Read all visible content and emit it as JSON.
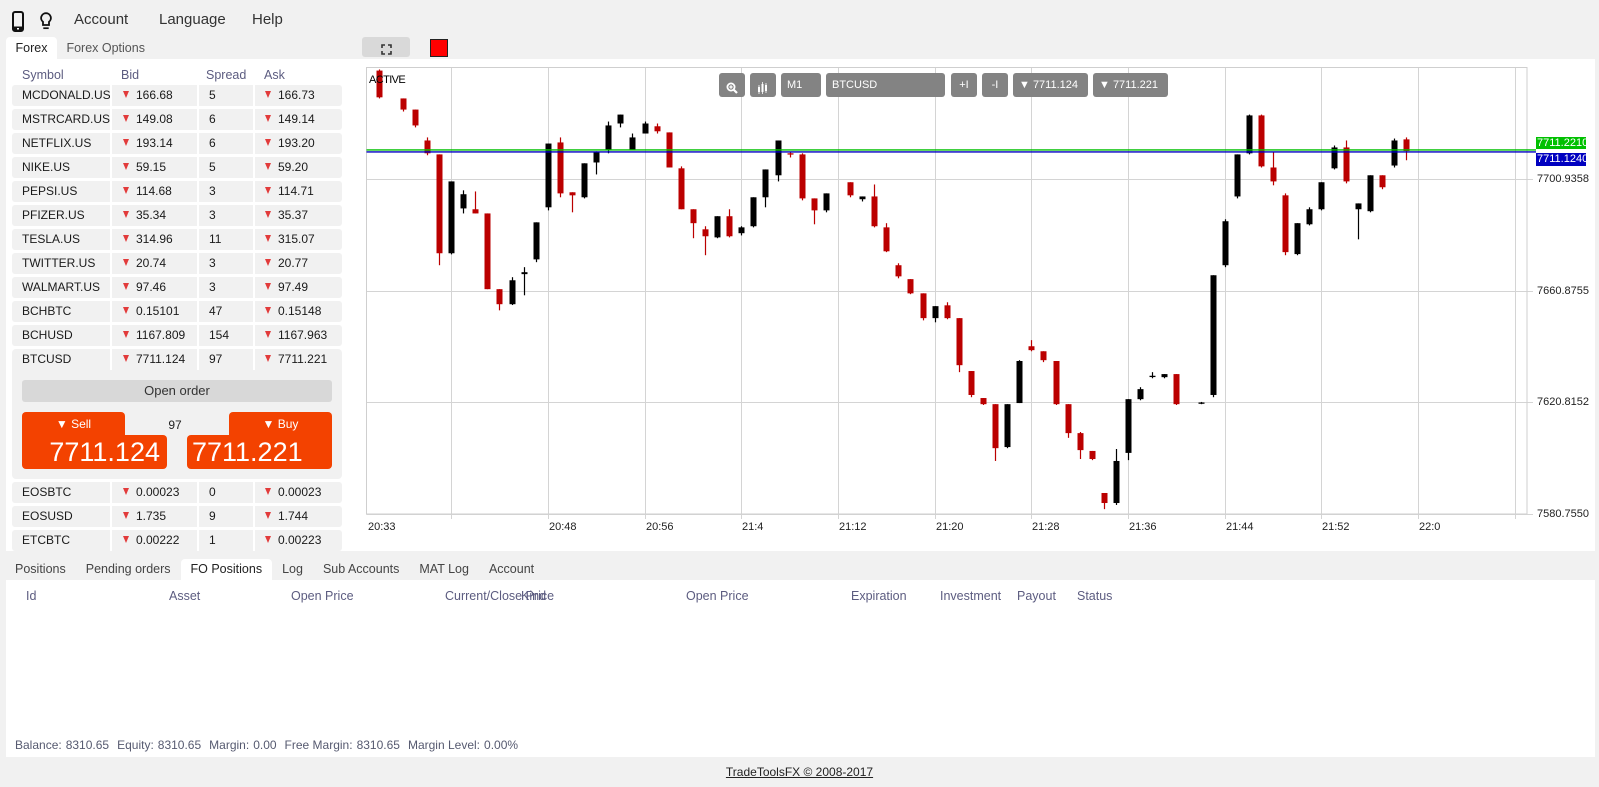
{
  "nav": {
    "icons": {
      "device": "phone-icon",
      "tips": "lightbulb-icon"
    },
    "items": [
      {
        "label": "Account"
      },
      {
        "label": "Language"
      },
      {
        "label": "Help"
      }
    ]
  },
  "watchlist": {
    "tabs": [
      {
        "label": "Forex",
        "active": true
      },
      {
        "label": "Forex Options",
        "active": false
      }
    ],
    "columns": {
      "symbol": "Symbol",
      "bid": "Bid",
      "spread": "Spread",
      "ask": "Ask"
    },
    "rows": [
      {
        "symbol": "MCDONALD.US",
        "bid": "166.68",
        "spread": "5",
        "ask": "166.73",
        "bid_trend": "down",
        "ask_trend": "down"
      },
      {
        "symbol": "MSTRCARD.US",
        "bid": "149.08",
        "spread": "6",
        "ask": "149.14",
        "bid_trend": "down",
        "ask_trend": "down"
      },
      {
        "symbol": "NETFLIX.US",
        "bid": "193.14",
        "spread": "6",
        "ask": "193.20",
        "bid_trend": "down",
        "ask_trend": "down"
      },
      {
        "symbol": "NIKE.US",
        "bid": "59.15",
        "spread": "5",
        "ask": "59.20",
        "bid_trend": "down",
        "ask_trend": "down"
      },
      {
        "symbol": "PEPSI.US",
        "bid": "114.68",
        "spread": "3",
        "ask": "114.71",
        "bid_trend": "down",
        "ask_trend": "down"
      },
      {
        "symbol": "PFIZER.US",
        "bid": "35.34",
        "spread": "3",
        "ask": "35.37",
        "bid_trend": "down",
        "ask_trend": "down"
      },
      {
        "symbol": "TESLA.US",
        "bid": "314.96",
        "spread": "11",
        "ask": "315.07",
        "bid_trend": "down",
        "ask_trend": "down"
      },
      {
        "symbol": "TWITTER.US",
        "bid": "20.74",
        "spread": "3",
        "ask": "20.77",
        "bid_trend": "down",
        "ask_trend": "down"
      },
      {
        "symbol": "WALMART.US",
        "bid": "97.46",
        "spread": "3",
        "ask": "97.49",
        "bid_trend": "down",
        "ask_trend": "down"
      },
      {
        "symbol": "BCHBTC",
        "bid": "0.15101",
        "spread": "47",
        "ask": "0.15148",
        "bid_trend": "down",
        "ask_trend": "down"
      },
      {
        "symbol": "BCHUSD",
        "bid": "1167.809",
        "spread": "154",
        "ask": "1167.963",
        "bid_trend": "down",
        "ask_trend": "down"
      }
    ],
    "selected": {
      "symbol": "BTCUSD",
      "bid": "7711.124",
      "spread": "97",
      "ask": "7711.221",
      "bid_trend": "down",
      "ask_trend": "down"
    },
    "rows_after": [
      {
        "symbol": "EOSBTC",
        "bid": "0.00023",
        "spread": "0",
        "ask": "0.00023",
        "bid_trend": "down",
        "ask_trend": "down"
      },
      {
        "symbol": "EOSUSD",
        "bid": "1.735",
        "spread": "9",
        "ask": "1.744",
        "bid_trend": "down",
        "ask_trend": "down"
      },
      {
        "symbol": "ETCBTC",
        "bid": "0.00222",
        "spread": "1",
        "ask": "0.00223",
        "bid_trend": "down",
        "ask_trend": "down"
      }
    ]
  },
  "order_ticket": {
    "open_order_label": "Open order",
    "sell_label": "▼ Sell",
    "buy_label": "▼ Buy",
    "sell_price": "7711.124",
    "buy_price": "7711.221",
    "spread": "97",
    "accent_color": "#f34200"
  },
  "chart_toolbar": {
    "fullscreen_icon": "fullscreen-icon",
    "color_swatch": "#ff0000",
    "zoom_icon": "zoom-in-icon",
    "chart_type_icon": "candlestick-icon",
    "timeframe": "M1",
    "symbol": "BTCUSD",
    "increase_label": "+I",
    "decrease_label": "-I",
    "bid_button": "▼ 7711.124",
    "ask_button": "▼ 7711.221"
  },
  "chart_data": {
    "type": "candlestick",
    "title": "BTCUSD M1",
    "status_label": "ACTIVE",
    "xlabel": "",
    "ylabel": "",
    "xlim": [
      "20:33",
      "22:09"
    ],
    "ylim": [
      7580.755,
      7741.11
    ],
    "grid": true,
    "y_ticks": [
      {
        "value": 7700.9358,
        "label": "7700.9358"
      },
      {
        "value": 7660.8755,
        "label": "7660.8755"
      },
      {
        "value": 7620.8152,
        "label": "7620.8152"
      },
      {
        "value": 7580.755,
        "label": "7580.7550"
      }
    ],
    "x_ticks": [
      {
        "time": "20:33",
        "label": "20:33"
      },
      {
        "time": "20:48",
        "label": "20:48"
      },
      {
        "time": "20:56",
        "label": "20:56"
      },
      {
        "time": "21:04",
        "label": "21:4"
      },
      {
        "time": "21:12",
        "label": "21:12"
      },
      {
        "time": "21:20",
        "label": "21:20"
      },
      {
        "time": "21:28",
        "label": "21:28"
      },
      {
        "time": "21:36",
        "label": "21:36"
      },
      {
        "time": "21:44",
        "label": "21:44"
      },
      {
        "time": "21:52",
        "label": "21:52"
      },
      {
        "time": "22:00",
        "label": "22:0"
      }
    ],
    "x_gridlines": [
      "20:40",
      "20:48",
      "20:56",
      "21:04",
      "21:12",
      "21:20",
      "21:28",
      "21:36",
      "21:44",
      "21:52",
      "22:00",
      "22:08"
    ],
    "price_lines": [
      {
        "name": "ask",
        "value": 7711.221,
        "label": "7711.2210",
        "color": "#00c000"
      },
      {
        "name": "bid",
        "value": 7711.124,
        "label": "7711.1240",
        "color": "#0000c0"
      }
    ],
    "colors": {
      "up": "#000000",
      "down": "#bb0000",
      "grid": "#d4d4d4"
    },
    "candles_format": [
      "time",
      "open",
      "high",
      "low",
      "close"
    ],
    "candles": [
      [
        "20:34",
        7740.0,
        7740.4,
        7730.0,
        7730.4
      ],
      [
        "20:36",
        7730.0,
        7730.0,
        7725.3,
        7726.0
      ],
      [
        "20:37",
        7726.0,
        7726.0,
        7719.6,
        7720.3
      ],
      [
        "20:38",
        7714.9,
        7716.0,
        7709.6,
        7710.3
      ],
      [
        "20:39",
        7709.9,
        7709.9,
        7670.1,
        7674.4
      ],
      [
        "20:40",
        7674.4,
        7700.2,
        7674.0,
        7700.2
      ],
      [
        "20:41",
        7690.5,
        7697.0,
        7688.7,
        7695.6
      ],
      [
        "20:42",
        7690.2,
        7696.6,
        7688.7,
        7688.7
      ],
      [
        "20:43",
        7688.7,
        7688.7,
        7661.5,
        7661.5
      ],
      [
        "20:44",
        7661.5,
        7661.5,
        7653.9,
        7656.1
      ],
      [
        "20:45",
        7656.1,
        7665.8,
        7655.8,
        7664.7
      ],
      [
        "20:46",
        7666.9,
        7669.4,
        7659.3,
        7667.6
      ],
      [
        "20:47",
        7672.2,
        7685.5,
        7671.2,
        7685.5
      ],
      [
        "20:48",
        7690.9,
        7713.8,
        7689.8,
        7713.8
      ],
      [
        "20:49",
        7714.2,
        7716.0,
        7694.5,
        7695.9
      ],
      [
        "20:50",
        7696.3,
        7696.3,
        7689.1,
        7695.2
      ],
      [
        "20:51",
        7694.5,
        7706.7,
        7694.1,
        7706.7
      ],
      [
        "20:52",
        7707.0,
        7711.0,
        7702.7,
        7710.6
      ],
      [
        "20:53",
        7711.3,
        7721.7,
        7710.3,
        7720.3
      ],
      [
        "20:54",
        7721.0,
        7724.2,
        7719.6,
        7724.2
      ],
      [
        "20:55",
        7711.3,
        7717.4,
        7711.3,
        7716.0
      ],
      [
        "20:56",
        7717.4,
        7721.7,
        7717.4,
        7721.0
      ],
      [
        "20:57",
        7720.0,
        7721.0,
        7717.4,
        7718.2
      ],
      [
        "20:58",
        7717.8,
        7717.8,
        7705.2,
        7705.2
      ],
      [
        "20:59",
        7704.9,
        7705.6,
        7690.2,
        7690.2
      ],
      [
        "21:00",
        7690.2,
        7690.2,
        7679.8,
        7685.2
      ],
      [
        "21:01",
        7683.0,
        7684.1,
        7673.7,
        7680.5
      ],
      [
        "21:02",
        7680.1,
        7687.7,
        7679.8,
        7687.7
      ],
      [
        "21:03",
        7687.7,
        7690.2,
        7680.1,
        7680.5
      ],
      [
        "21:04",
        7681.6,
        7684.1,
        7680.8,
        7683.7
      ],
      [
        "21:05",
        7684.1,
        7694.5,
        7683.7,
        7694.5
      ],
      [
        "21:06",
        7694.5,
        7704.5,
        7690.9,
        7704.5
      ],
      [
        "21:07",
        7702.4,
        7714.9,
        7700.2,
        7714.9
      ],
      [
        "21:08",
        7710.3,
        7710.6,
        7708.8,
        7709.9
      ],
      [
        "21:09",
        7709.9,
        7710.3,
        7693.4,
        7694.1
      ],
      [
        "21:10",
        7694.1,
        7694.1,
        7684.8,
        7689.8
      ],
      [
        "21:11",
        7689.8,
        7695.9,
        7689.1,
        7695.9
      ],
      [
        "21:13",
        7699.9,
        7699.9,
        7694.5,
        7695.2
      ],
      [
        "21:14",
        7693.8,
        7694.8,
        7693.0,
        7694.8
      ],
      [
        "21:15",
        7694.8,
        7699.1,
        7683.7,
        7684.1
      ],
      [
        "21:16",
        7683.7,
        7685.2,
        7674.8,
        7675.1
      ],
      [
        "21:17",
        7670.1,
        7670.8,
        7665.4,
        7666.1
      ],
      [
        "21:18",
        7665.1,
        7665.1,
        7659.7,
        7660.0
      ],
      [
        "21:19",
        7660.0,
        7660.0,
        7650.3,
        7651.1
      ],
      [
        "21:20",
        7651.1,
        7655.4,
        7649.6,
        7655.4
      ],
      [
        "21:21",
        7655.7,
        7656.8,
        7650.7,
        7651.1
      ],
      [
        "21:22",
        7651.1,
        7651.1,
        7631.7,
        7634.2
      ],
      [
        "21:23",
        7632.1,
        7632.1,
        7622.7,
        7623.5
      ],
      [
        "21:24",
        7622.4,
        7622.4,
        7619.9,
        7620.2
      ],
      [
        "21:25",
        7620.2,
        7620.2,
        7599.8,
        7604.4
      ],
      [
        "21:26",
        7604.8,
        7620.2,
        7604.4,
        7620.2
      ],
      [
        "21:27",
        7620.6,
        7636.0,
        7620.6,
        7635.7
      ],
      [
        "21:28",
        7641.0,
        7643.2,
        7639.2,
        7639.6
      ],
      [
        "21:29",
        7639.2,
        7639.2,
        7635.3,
        7636.0
      ],
      [
        "21:30",
        7635.7,
        7635.7,
        7619.9,
        7620.2
      ],
      [
        "21:31",
        7620.2,
        7620.2,
        7608.1,
        7609.8
      ],
      [
        "21:32",
        7609.8,
        7610.2,
        7600.5,
        7603.7
      ],
      [
        "21:33",
        7603.4,
        7603.4,
        7600.1,
        7600.5
      ],
      [
        "21:34",
        7588.3,
        7588.3,
        7582.5,
        7584.7
      ],
      [
        "21:35",
        7584.7,
        7604.1,
        7584.0,
        7599.8
      ],
      [
        "21:36",
        7602.7,
        7622.0,
        7600.1,
        7622.0
      ],
      [
        "21:37",
        7622.0,
        7626.3,
        7621.6,
        7625.6
      ],
      [
        "21:38",
        7630.3,
        7631.7,
        7629.5,
        7630.4
      ],
      [
        "21:39",
        7629.9,
        7631.0,
        7629.5,
        7631.0
      ],
      [
        "21:40",
        7631.0,
        7631.0,
        7619.9,
        7620.2
      ],
      [
        "21:42",
        7620.6,
        7621.0,
        7620.2,
        7620.8
      ],
      [
        "21:43",
        7623.5,
        7666.5,
        7622.7,
        7666.5
      ],
      [
        "21:44",
        7670.1,
        7686.6,
        7669.4,
        7685.9
      ],
      [
        "21:45",
        7694.8,
        7709.9,
        7694.1,
        7709.9
      ],
      [
        "21:46",
        7710.3,
        7724.2,
        7709.9,
        7723.9
      ],
      [
        "21:47",
        7723.9,
        7724.2,
        7705.2,
        7705.6
      ],
      [
        "21:48",
        7705.2,
        7710.6,
        7698.8,
        7700.2
      ],
      [
        "21:49",
        7695.2,
        7695.9,
        7673.7,
        7674.8
      ],
      [
        "21:50",
        7674.1,
        7685.2,
        7673.7,
        7685.2
      ],
      [
        "21:51",
        7684.8,
        7690.9,
        7684.4,
        7690.2
      ],
      [
        "21:52",
        7690.2,
        7699.9,
        7689.8,
        7699.9
      ],
      [
        "21:53",
        7704.9,
        7713.1,
        7704.5,
        7712.4
      ],
      [
        "21:54",
        7712.4,
        7714.9,
        7699.5,
        7700.2
      ],
      [
        "21:55",
        7690.2,
        7692.3,
        7679.4,
        7692.3
      ],
      [
        "21:56",
        7689.5,
        7702.4,
        7689.1,
        7702.4
      ],
      [
        "21:57",
        7702.4,
        7702.4,
        7697.4,
        7698.1
      ],
      [
        "21:58",
        7705.9,
        7715.6,
        7705.2,
        7714.9
      ],
      [
        "21:59",
        7715.3,
        7716.0,
        7707.8,
        7711.1
      ]
    ]
  },
  "bottom": {
    "tabs": [
      {
        "label": "Positions",
        "active": false
      },
      {
        "label": "Pending orders",
        "active": false
      },
      {
        "label": "FO Positions",
        "active": true
      },
      {
        "label": "Log",
        "active": false
      },
      {
        "label": "Sub Accounts",
        "active": false
      },
      {
        "label": "MAT Log",
        "active": false
      },
      {
        "label": "Account",
        "active": false
      }
    ],
    "columns": [
      {
        "label": "Id"
      },
      {
        "label": "Asset"
      },
      {
        "label": "Open Price"
      },
      {
        "label": "Current/Close Price"
      },
      {
        "label": "Kind"
      },
      {
        "label": "Open Price"
      },
      {
        "label": "Expiration"
      },
      {
        "label": "Investment"
      },
      {
        "label": "Payout"
      },
      {
        "label": "Status"
      }
    ],
    "rows": [],
    "summary": [
      {
        "label": "Balance:",
        "value": "8310.65"
      },
      {
        "label": "Equity:",
        "value": "8310.65"
      },
      {
        "label": "Margin:",
        "value": "0.00"
      },
      {
        "label": "Free Margin:",
        "value": "8310.65"
      },
      {
        "label": "Margin Level:",
        "value": "0.00%"
      }
    ]
  },
  "footer": {
    "label": "TradeToolsFX © 2008-2017"
  }
}
